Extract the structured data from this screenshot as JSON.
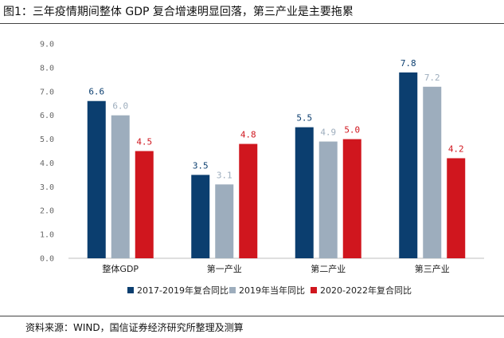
{
  "figure": {
    "title": "图1：三年疫情期间整体 GDP 复合增速明显回落，第三产业是主要拖累",
    "source": "资料来源：WIND，国信证券经济研究所整理及测算"
  },
  "chart_data": {
    "type": "bar",
    "categories": [
      "整体GDP",
      "第一产业",
      "第二产业",
      "第三产业"
    ],
    "series": [
      {
        "name": "2017-2019年复合同比",
        "color": "#0b3e6f",
        "values": [
          6.6,
          3.5,
          5.5,
          7.8
        ]
      },
      {
        "name": "2019年当年同比",
        "color": "#9dadbd",
        "values": [
          6.0,
          3.1,
          4.9,
          7.2
        ]
      },
      {
        "name": "2020-2022年复合同比",
        "color": "#d0161e",
        "values": [
          4.5,
          4.8,
          5.0,
          4.2
        ]
      }
    ],
    "value_labels": [
      [
        "6.6",
        "3.5",
        "5.5",
        "7.8"
      ],
      [
        "6.0",
        "3.1",
        "4.9",
        "7.2"
      ],
      [
        "4.5",
        "4.8",
        "5.0",
        "4.2"
      ]
    ],
    "yticks": [
      "0.0",
      "1.0",
      "2.0",
      "3.0",
      "4.0",
      "5.0",
      "6.0",
      "7.0",
      "8.0",
      "9.0"
    ],
    "ylim": [
      0,
      9
    ],
    "grid": false,
    "legend_position": "bottom"
  }
}
